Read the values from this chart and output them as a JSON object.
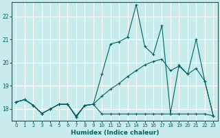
{
  "xlabel": "Humidex (Indice chaleur)",
  "bg_color": "#c8ecec",
  "grid_color": "#ffffff",
  "line_color": "#006060",
  "xlim": [
    -0.5,
    23.5
  ],
  "ylim": [
    17.5,
    22.6
  ],
  "yticks": [
    18,
    19,
    20,
    21,
    22
  ],
  "xticks": [
    0,
    1,
    2,
    3,
    4,
    5,
    6,
    7,
    8,
    9,
    10,
    11,
    12,
    13,
    14,
    15,
    16,
    17,
    18,
    19,
    20,
    21,
    22,
    23
  ],
  "series_max": [
    18.3,
    18.4,
    18.15,
    17.8,
    18.0,
    18.2,
    18.2,
    17.7,
    18.15,
    18.2,
    19.5,
    20.8,
    20.9,
    21.1,
    22.5,
    20.7,
    20.35,
    21.6,
    17.8,
    19.9,
    19.5,
    21.0,
    19.2,
    17.7
  ],
  "series_min": [
    18.3,
    18.4,
    18.15,
    17.8,
    18.0,
    18.2,
    18.2,
    17.65,
    18.15,
    18.2,
    17.78,
    17.78,
    17.78,
    17.78,
    17.78,
    17.78,
    17.78,
    17.78,
    17.78,
    17.78,
    17.78,
    17.78,
    17.78,
    17.7
  ],
  "series_avg": [
    18.3,
    18.4,
    18.15,
    17.8,
    18.0,
    18.2,
    18.2,
    17.65,
    18.15,
    18.2,
    18.55,
    18.85,
    19.1,
    19.4,
    19.65,
    19.9,
    20.05,
    20.15,
    19.65,
    19.85,
    19.5,
    19.75,
    19.2,
    17.7
  ]
}
